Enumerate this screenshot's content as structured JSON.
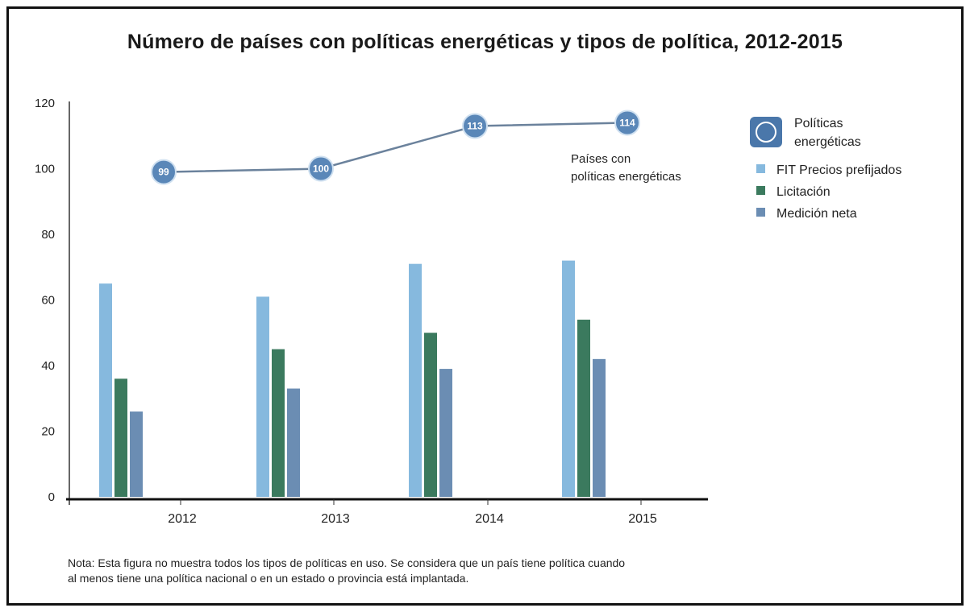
{
  "chart_data": {
    "type": "bar",
    "title": "Número de países con políticas energéticas y tipos de política, 2012-2015",
    "categories": [
      "2012",
      "2013",
      "2014",
      "2015"
    ],
    "ylim": [
      0,
      120
    ],
    "yticks": [
      0,
      20,
      40,
      60,
      80,
      100,
      120
    ],
    "grid": false,
    "legend_position": "right",
    "series": [
      {
        "name": "FIT Precios prefijados",
        "type": "bar",
        "color": "#86b9de",
        "values": [
          65,
          61,
          71,
          72
        ]
      },
      {
        "name": "Licitación",
        "type": "bar",
        "color": "#3b7a5e",
        "values": [
          36,
          45,
          50,
          54
        ]
      },
      {
        "name": "Medición neta",
        "type": "bar",
        "color": "#6b8db3",
        "values": [
          26,
          33,
          39,
          42
        ]
      },
      {
        "name": "Políticas energéticas",
        "type": "line",
        "color": "#5a87b8",
        "values": [
          99,
          100,
          113,
          114
        ],
        "labels": [
          "99",
          "100",
          "113",
          "114"
        ]
      }
    ],
    "line_annotation": "Países con\npolíticas energéticas",
    "note": "Nota: Esta figura no muestra todos los tipos de políticas en uso. Se considera que un país tiene política cuando\nal menos tiene una política nacional o en un estado o provincia está implantada."
  }
}
